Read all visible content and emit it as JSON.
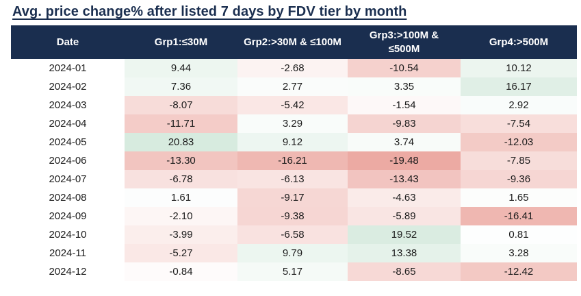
{
  "title": "Avg. price change% after listed 7 days by FDV tier by month",
  "style": {
    "header_bg": "#1a2e4f",
    "header_text": "#ffffff",
    "title_color": "#1a2e4f",
    "cell_text": "#1b1b1b"
  },
  "chart_data": {
    "type": "heatmap",
    "title": "Avg. price change% after listed 7 days by FDV tier by month",
    "columns": [
      "Date",
      "Grp1:≤30M",
      "Grp2:>30M & ≤100M",
      "Grp3:>100M &\n≤500M",
      "Grp4:>500M"
    ],
    "rows": [
      {
        "date": "2024-01",
        "values": [
          9.44,
          -2.68,
          -10.54,
          10.12
        ]
      },
      {
        "date": "2024-02",
        "values": [
          7.36,
          2.77,
          3.35,
          16.17
        ]
      },
      {
        "date": "2024-03",
        "values": [
          -8.07,
          -5.42,
          -1.54,
          2.92
        ]
      },
      {
        "date": "2024-04",
        "values": [
          -11.71,
          3.29,
          -9.83,
          -7.54
        ]
      },
      {
        "date": "2024-05",
        "values": [
          20.83,
          9.12,
          3.74,
          -12.03
        ]
      },
      {
        "date": "2024-06",
        "values": [
          -13.3,
          -16.21,
          -19.48,
          -7.85
        ]
      },
      {
        "date": "2024-07",
        "values": [
          -6.78,
          -6.13,
          -13.43,
          -9.36
        ]
      },
      {
        "date": "2024-08",
        "values": [
          1.61,
          -9.17,
          -4.63,
          1.65
        ]
      },
      {
        "date": "2024-09",
        "values": [
          -2.1,
          -9.38,
          -5.89,
          -16.41
        ]
      },
      {
        "date": "2024-10",
        "values": [
          -3.99,
          -6.58,
          19.52,
          0.81
        ]
      },
      {
        "date": "2024-11",
        "values": [
          -5.27,
          9.79,
          13.38,
          3.28
        ]
      },
      {
        "date": "2024-12",
        "values": [
          -0.84,
          5.17,
          -8.65,
          -12.42
        ]
      }
    ],
    "value_format": "2dp",
    "color_scale": {
      "min": -19.48,
      "max": 20.83,
      "negative_end": "#ecaaa3",
      "midpoint": "#ffffff",
      "positive_end": "#d7ebdf"
    },
    "legend_position": "none",
    "grid": false
  }
}
